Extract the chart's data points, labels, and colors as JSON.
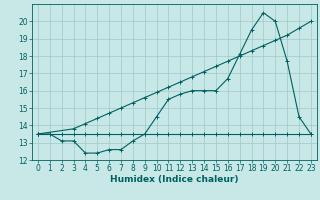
{
  "title": "",
  "xlabel": "Humidex (Indice chaleur)",
  "xlim": [
    -0.5,
    23.5
  ],
  "ylim": [
    12,
    21
  ],
  "yticks": [
    12,
    13,
    14,
    15,
    16,
    17,
    18,
    19,
    20
  ],
  "xticks": [
    0,
    1,
    2,
    3,
    4,
    5,
    6,
    7,
    8,
    9,
    10,
    11,
    12,
    13,
    14,
    15,
    16,
    17,
    18,
    19,
    20,
    21,
    22,
    23
  ],
  "bg_color": "#c8e8e8",
  "grid_color": "#a0c8c8",
  "line_color": "#006060",
  "line1_x": [
    0,
    1,
    2,
    3,
    4,
    5,
    6,
    7,
    8,
    9,
    10,
    11,
    12,
    13,
    14,
    15,
    16,
    17,
    18,
    19,
    20,
    21,
    22,
    23
  ],
  "line1_y": [
    13.5,
    13.5,
    13.5,
    13.5,
    13.5,
    13.5,
    13.5,
    13.5,
    13.5,
    13.5,
    13.5,
    13.5,
    13.5,
    13.5,
    13.5,
    13.5,
    13.5,
    13.5,
    13.5,
    13.5,
    13.5,
    13.5,
    13.5,
    13.5
  ],
  "line2_x": [
    0,
    3,
    4,
    5,
    6,
    7,
    8,
    9,
    10,
    11,
    12,
    13,
    14,
    15,
    16,
    17,
    18,
    19,
    20,
    21,
    22,
    23
  ],
  "line2_y": [
    13.5,
    13.8,
    14.1,
    14.4,
    14.7,
    15.0,
    15.3,
    15.6,
    15.9,
    16.2,
    16.5,
    16.8,
    17.1,
    17.4,
    17.7,
    18.0,
    18.3,
    18.6,
    18.9,
    19.2,
    19.6,
    20.0
  ],
  "line3_x": [
    0,
    1,
    2,
    3,
    4,
    5,
    6,
    7,
    8,
    9,
    10,
    11,
    12,
    13,
    14,
    15,
    16,
    17,
    18,
    19,
    20,
    21,
    22,
    23
  ],
  "line3_y": [
    13.5,
    13.5,
    13.1,
    13.1,
    12.4,
    12.4,
    12.6,
    12.6,
    13.1,
    13.5,
    14.5,
    15.5,
    15.8,
    16.0,
    16.0,
    16.0,
    16.7,
    18.1,
    19.5,
    20.5,
    20.0,
    17.7,
    14.5,
    13.5
  ]
}
